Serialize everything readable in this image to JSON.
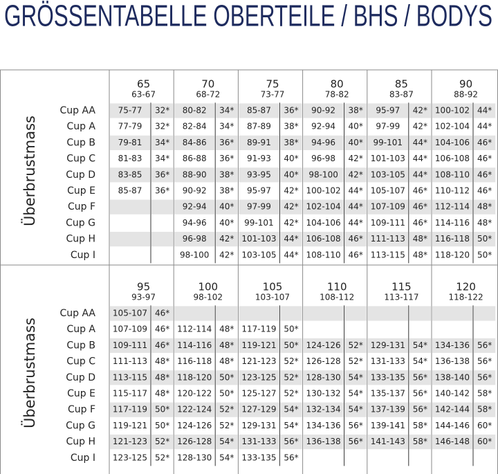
{
  "title": "GRÖSSENTABELLE OBERTEILE / BHS / BODYS",
  "tables": [
    {
      "row_label": "Überbrustmass",
      "bands": [
        {
          "band": "65",
          "range": "63-67"
        },
        {
          "band": "70",
          "range": "68-72"
        },
        {
          "band": "75",
          "range": "73-77"
        },
        {
          "band": "80",
          "range": "78-82"
        },
        {
          "band": "85",
          "range": "83-87"
        },
        {
          "band": "90",
          "range": "88-92"
        }
      ],
      "rows": [
        {
          "cup": "Cup AA",
          "cells": [
            [
              "75-77",
              "32*"
            ],
            [
              "80-82",
              "34*"
            ],
            [
              "85-87",
              "36*"
            ],
            [
              "90-92",
              "38*"
            ],
            [
              "95-97",
              "42*"
            ],
            [
              "100-102",
              "44*"
            ]
          ]
        },
        {
          "cup": "Cup A",
          "cells": [
            [
              "77-79",
              "32*"
            ],
            [
              "82-84",
              "34*"
            ],
            [
              "87-89",
              "38*"
            ],
            [
              "92-94",
              "40*"
            ],
            [
              "97-99",
              "42*"
            ],
            [
              "102-104",
              "44*"
            ]
          ]
        },
        {
          "cup": "Cup B",
          "cells": [
            [
              "79-81",
              "34*"
            ],
            [
              "84-86",
              "36*"
            ],
            [
              "89-91",
              "38*"
            ],
            [
              "94-96",
              "40*"
            ],
            [
              "99-101",
              "44*"
            ],
            [
              "104-106",
              "46*"
            ]
          ]
        },
        {
          "cup": "Cup C",
          "cells": [
            [
              "81-83",
              "34*"
            ],
            [
              "86-88",
              "36*"
            ],
            [
              "91-93",
              "40*"
            ],
            [
              "96-98",
              "42*"
            ],
            [
              "101-103",
              "44*"
            ],
            [
              "106-108",
              "46*"
            ]
          ]
        },
        {
          "cup": "Cup D",
          "cells": [
            [
              "83-85",
              "36*"
            ],
            [
              "88-90",
              "38*"
            ],
            [
              "93-95",
              "40*"
            ],
            [
              "98-100",
              "42*"
            ],
            [
              "103-105",
              "44*"
            ],
            [
              "108-110",
              "46*"
            ]
          ]
        },
        {
          "cup": "Cup E",
          "cells": [
            [
              "85-87",
              "36*"
            ],
            [
              "90-92",
              "38*"
            ],
            [
              "95-97",
              "42*"
            ],
            [
              "100-102",
              "44*"
            ],
            [
              "105-107",
              "46*"
            ],
            [
              "110-112",
              "46*"
            ]
          ]
        },
        {
          "cup": "Cup F",
          "cells": [
            null,
            [
              "92-94",
              "40*"
            ],
            [
              "97-99",
              "42*"
            ],
            [
              "102-104",
              "44*"
            ],
            [
              "107-109",
              "46*"
            ],
            [
              "112-114",
              "48*"
            ]
          ]
        },
        {
          "cup": "Cup G",
          "cells": [
            null,
            [
              "94-96",
              "40*"
            ],
            [
              "99-101",
              "42*"
            ],
            [
              "104-106",
              "44*"
            ],
            [
              "109-111",
              "46*"
            ],
            [
              "114-116",
              "48*"
            ]
          ]
        },
        {
          "cup": "Cup H",
          "cells": [
            null,
            [
              "96-98",
              "42*"
            ],
            [
              "101-103",
              "44*"
            ],
            [
              "106-108",
              "46*"
            ],
            [
              "111-113",
              "48*"
            ],
            [
              "116-118",
              "50*"
            ]
          ]
        },
        {
          "cup": "Cup I",
          "cells": [
            null,
            [
              "98-100",
              "42*"
            ],
            [
              "103-105",
              "44*"
            ],
            [
              "108-110",
              "46*"
            ],
            [
              "113-115",
              "48*"
            ],
            [
              "118-120",
              "50*"
            ]
          ]
        }
      ]
    },
    {
      "row_label": "Überbrustmass",
      "bands": [
        {
          "band": "95",
          "range": "93-97"
        },
        {
          "band": "100",
          "range": "98-102"
        },
        {
          "band": "105",
          "range": "103-107"
        },
        {
          "band": "110",
          "range": "108-112"
        },
        {
          "band": "115",
          "range": "113-117"
        },
        {
          "band": "120",
          "range": "118-122"
        }
      ],
      "rows": [
        {
          "cup": "Cup AA",
          "cells": [
            [
              "105-107",
              "46*"
            ],
            null,
            null,
            null,
            null,
            null
          ]
        },
        {
          "cup": "Cup A",
          "cells": [
            [
              "107-109",
              "46*"
            ],
            [
              "112-114",
              "48*"
            ],
            [
              "117-119",
              "50*"
            ],
            null,
            null,
            null
          ]
        },
        {
          "cup": "Cup B",
          "cells": [
            [
              "109-111",
              "46*"
            ],
            [
              "114-116",
              "48*"
            ],
            [
              "119-121",
              "50*"
            ],
            [
              "124-126",
              "52*"
            ],
            [
              "129-131",
              "54*"
            ],
            [
              "134-136",
              "56*"
            ]
          ]
        },
        {
          "cup": "Cup C",
          "cells": [
            [
              "111-113",
              "48*"
            ],
            [
              "116-118",
              "48*"
            ],
            [
              "121-123",
              "52*"
            ],
            [
              "126-128",
              "52*"
            ],
            [
              "131-133",
              "54*"
            ],
            [
              "136-138",
              "56*"
            ]
          ]
        },
        {
          "cup": "Cup D",
          "cells": [
            [
              "113-115",
              "48*"
            ],
            [
              "118-120",
              "50*"
            ],
            [
              "123-125",
              "52*"
            ],
            [
              "128-130",
              "54*"
            ],
            [
              "133-135",
              "56*"
            ],
            [
              "138-140",
              "56*"
            ]
          ]
        },
        {
          "cup": "Cup E",
          "cells": [
            [
              "115-117",
              "48*"
            ],
            [
              "120-122",
              "50*"
            ],
            [
              "125-127",
              "52*"
            ],
            [
              "130-132",
              "54*"
            ],
            [
              "135-137",
              "56*"
            ],
            [
              "140-142",
              "58*"
            ]
          ]
        },
        {
          "cup": "Cup F",
          "cells": [
            [
              "117-119",
              "50*"
            ],
            [
              "122-124",
              "52*"
            ],
            [
              "127-129",
              "54*"
            ],
            [
              "132-134",
              "54*"
            ],
            [
              "137-139",
              "56*"
            ],
            [
              "142-144",
              "58*"
            ]
          ]
        },
        {
          "cup": "Cup G",
          "cells": [
            [
              "119-121",
              "50*"
            ],
            [
              "124-126",
              "52*"
            ],
            [
              "129-131",
              "54*"
            ],
            [
              "134-136",
              "56*"
            ],
            [
              "139-141",
              "58*"
            ],
            [
              "144-146",
              "60*"
            ]
          ]
        },
        {
          "cup": "Cup H",
          "cells": [
            [
              "121-123",
              "52*"
            ],
            [
              "126-128",
              "54*"
            ],
            [
              "131-133",
              "56*"
            ],
            [
              "136-138",
              "56*"
            ],
            [
              "141-143",
              "58*"
            ],
            [
              "146-148",
              "60*"
            ]
          ]
        },
        {
          "cup": "Cup I",
          "cells": [
            [
              "123-125",
              "52*"
            ],
            [
              "128-130",
              "54*"
            ],
            [
              "133-135",
              "56*"
            ],
            null,
            null,
            null
          ]
        }
      ]
    }
  ]
}
